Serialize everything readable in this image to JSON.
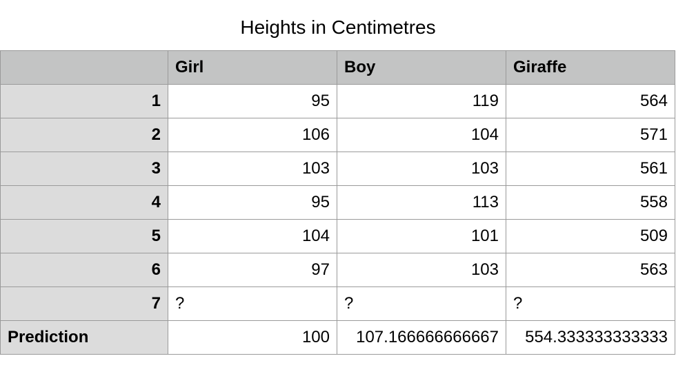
{
  "title": "Heights in Centimetres",
  "table": {
    "headers": [
      "",
      "Girl",
      "Boy",
      "Giraffe"
    ],
    "rows": [
      {
        "label": "1",
        "values": [
          "95",
          "119",
          "564"
        ]
      },
      {
        "label": "2",
        "values": [
          "106",
          "104",
          "571"
        ]
      },
      {
        "label": "3",
        "values": [
          "103",
          "103",
          "561"
        ]
      },
      {
        "label": "4",
        "values": [
          "95",
          "113",
          "558"
        ]
      },
      {
        "label": "5",
        "values": [
          "104",
          "101",
          "509"
        ]
      },
      {
        "label": "6",
        "values": [
          "97",
          "103",
          "563"
        ]
      },
      {
        "label": "7",
        "values": [
          "?",
          "?",
          "?"
        ]
      }
    ],
    "summary": {
      "label": "Prediction",
      "values": [
        "100",
        "107.166666666667",
        "554.333333333333"
      ]
    }
  },
  "colors": {
    "header_bg": "#c3c4c4",
    "row_header_bg": "#dcdcdc",
    "grid_line": "#9a9a9a"
  }
}
